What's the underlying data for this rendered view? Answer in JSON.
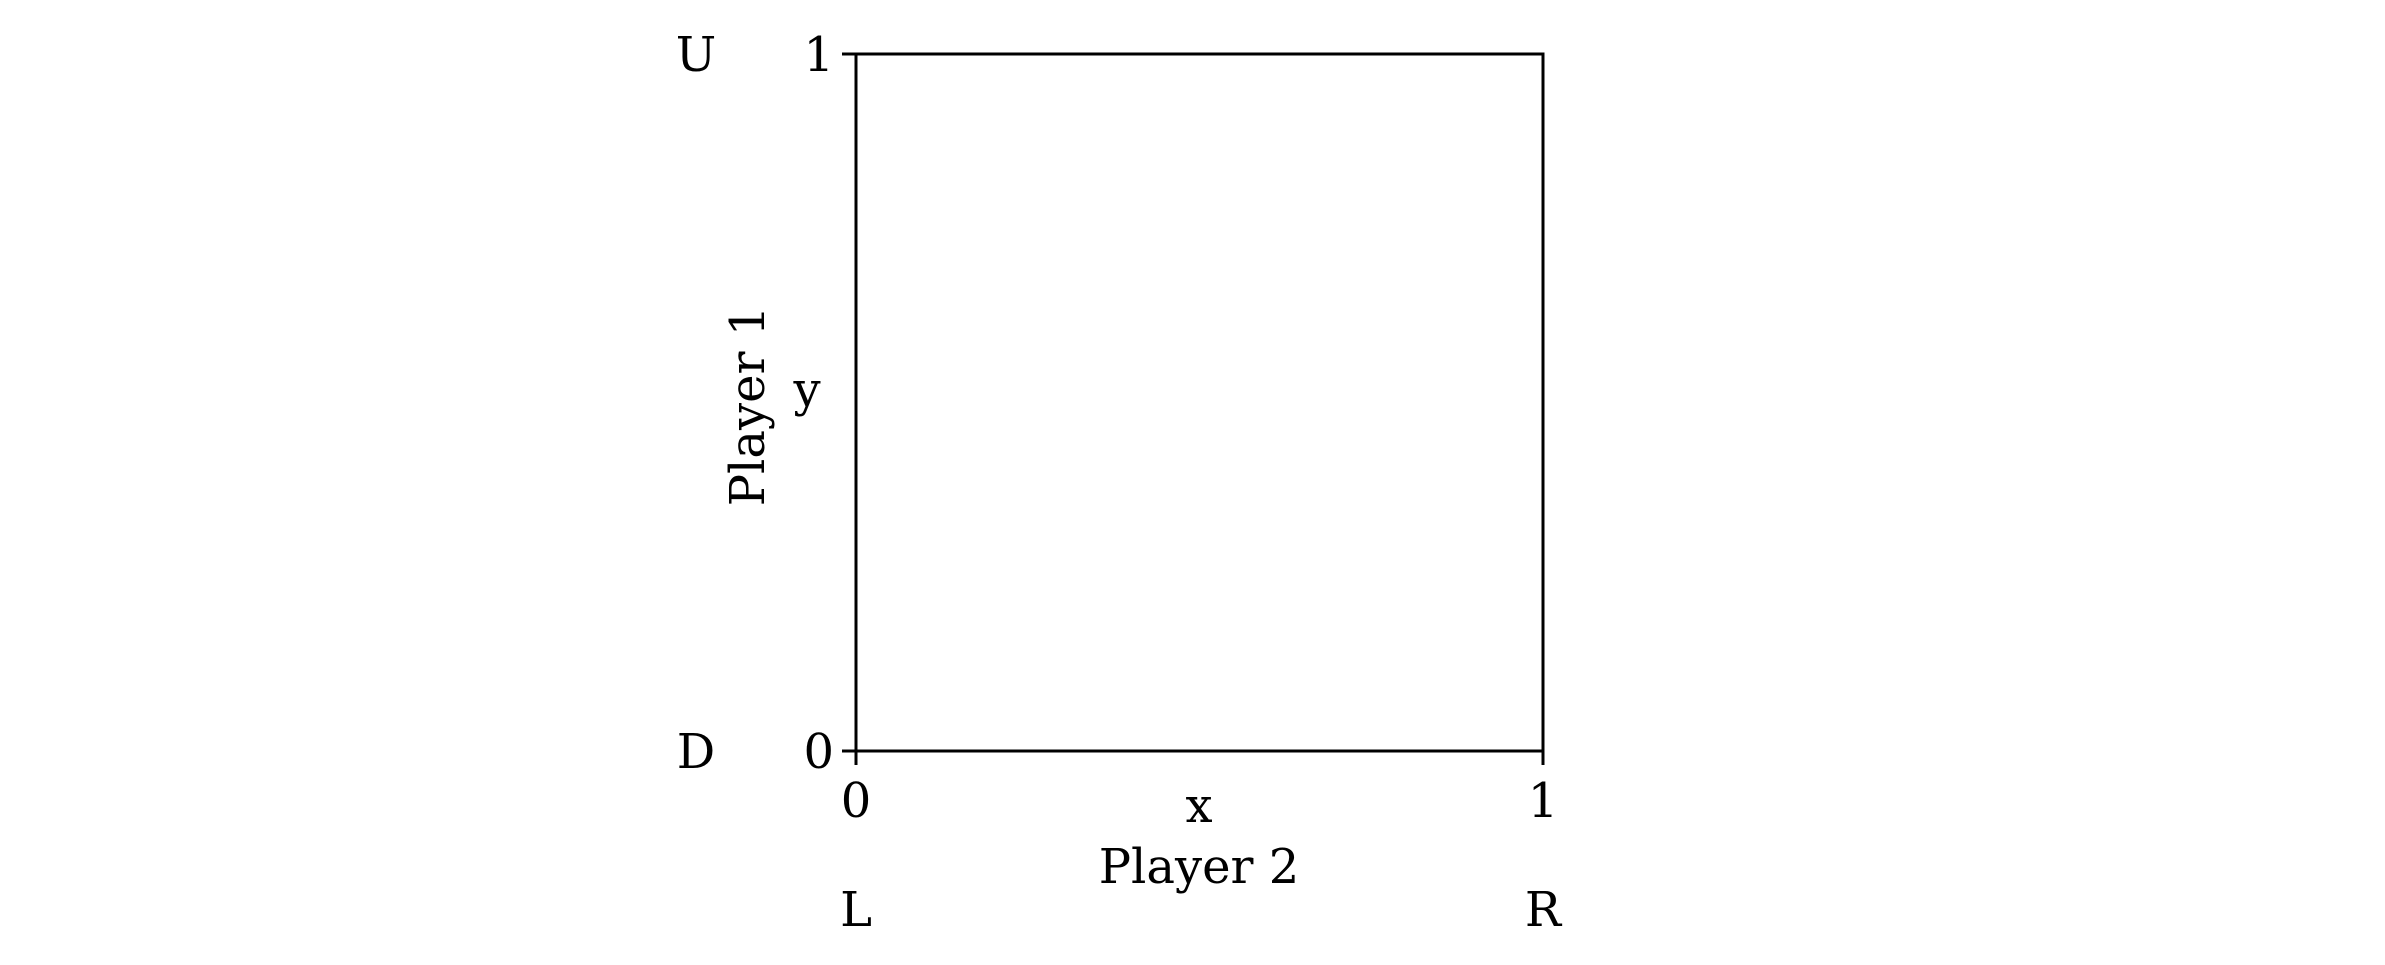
{
  "chart_data": {
    "type": "scatter",
    "series": [],
    "xlabel": "x",
    "ylabel": "y",
    "xlim": [
      0,
      1
    ],
    "ylim": [
      0,
      1
    ],
    "x_ticks": [
      {
        "value": 0,
        "label": "0"
      },
      {
        "value": 1,
        "label": "1"
      }
    ],
    "y_ticks": [
      {
        "value": 0,
        "label": "0"
      },
      {
        "value": 1,
        "label": "1"
      }
    ],
    "x_axis_player_label": "Player 2",
    "y_axis_player_label": "Player 1",
    "x_strategy_labels": [
      {
        "value": 0,
        "label": "L"
      },
      {
        "value": 1,
        "label": "R"
      }
    ],
    "y_strategy_labels": [
      {
        "value": 0,
        "label": "D"
      },
      {
        "value": 1,
        "label": "U"
      }
    ],
    "grid": false,
    "legend": "none"
  },
  "colors": {
    "axis": "#000000",
    "background": "#ffffff"
  }
}
